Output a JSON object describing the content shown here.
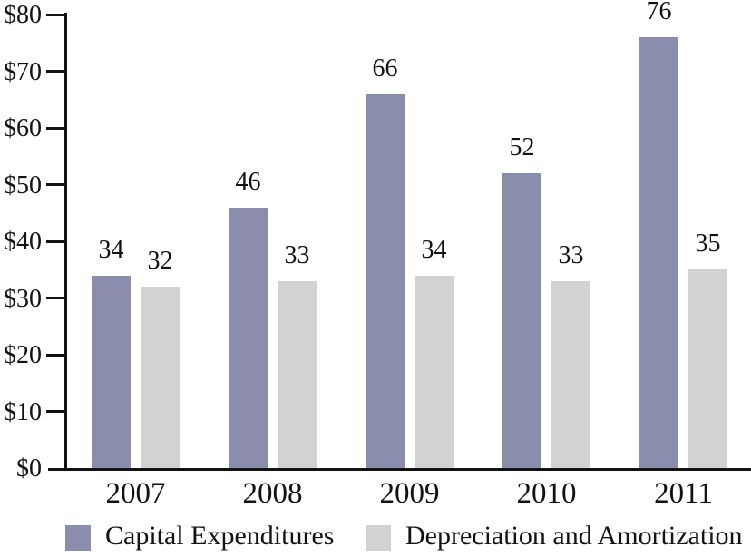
{
  "chart_data": {
    "type": "bar",
    "subtype": "grouped-vertical",
    "title": "",
    "xlabel": "",
    "ylabel": "",
    "categories": [
      "2007",
      "2008",
      "2009",
      "2010",
      "2011"
    ],
    "series": [
      {
        "name": "Capital Expenditures",
        "color": "#8b8dac",
        "values": [
          34,
          46,
          66,
          52,
          76
        ]
      },
      {
        "name": "Depreciation and Amortization",
        "color": "#d2d2d2",
        "values": [
          32,
          33,
          34,
          33,
          35
        ]
      }
    ],
    "bar_value_labels_shown": true,
    "ylim": [
      0,
      80
    ],
    "ytick_step": 10,
    "ytick_labels": [
      "$0",
      "$10",
      "$20",
      "$30",
      "$40",
      "$50",
      "$60",
      "$70",
      "$80"
    ],
    "grid": false,
    "legend_position": "bottom",
    "axis_color": "#131313",
    "text_color": "#131313",
    "background_color": "#ffffff"
  }
}
